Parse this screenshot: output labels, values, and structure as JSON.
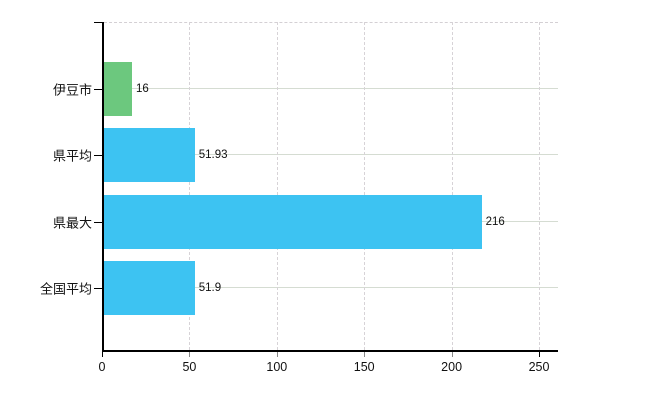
{
  "chart_data": {
    "type": "bar",
    "orientation": "horizontal",
    "title": "",
    "xlabel": "",
    "ylabel": "",
    "categories": [
      "伊豆市",
      "県平均",
      "県最大",
      "全国平均"
    ],
    "values": [
      16,
      51.93,
      216,
      51.9
    ],
    "value_labels": [
      "16",
      "51.93",
      "216",
      "51.9"
    ],
    "bar_colors": [
      "#6cc87e",
      "#3dc3f2",
      "#3dc3f2",
      "#3dc3f2"
    ],
    "x_ticks": [
      0,
      50,
      100,
      150,
      200,
      250
    ],
    "x_tick_labels": [
      "0",
      "50",
      "100",
      "150",
      "200",
      "250"
    ],
    "xlim": [
      0,
      261
    ],
    "grid": true,
    "legend": false,
    "colors": {
      "green_bar": "#6cc87e",
      "blue_bar": "#3dc3f2",
      "axis": "#000000",
      "horizontal_grid": "#d5dcd2",
      "vertical_grid": "#d7d3d7",
      "text": "#111111",
      "background": "#ffffff"
    }
  }
}
